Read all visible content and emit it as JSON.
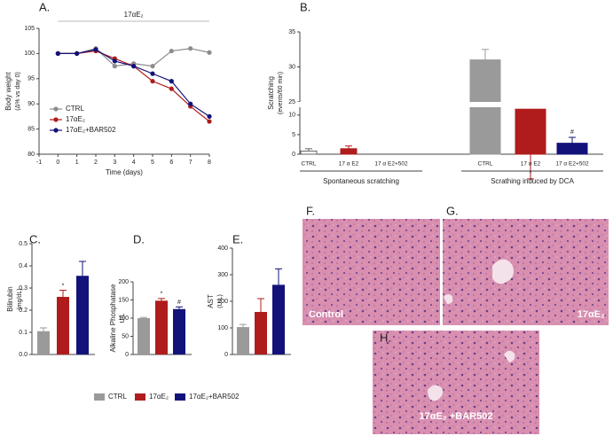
{
  "chart_data": [
    {
      "type": "line",
      "label": "A.",
      "annotation": "17αE₂",
      "ylabel": "Body weight",
      "ylabel_unit": "(Δ% vs day 0)",
      "xlabel": "Time (days)",
      "x": [
        0,
        1,
        2,
        3,
        4,
        5,
        6,
        7,
        8
      ],
      "xlim": [
        -1,
        8
      ],
      "xticks": [
        -1,
        0,
        1,
        2,
        3,
        4,
        5,
        6,
        7,
        8
      ],
      "ylim": [
        80,
        105
      ],
      "yticks": [
        80,
        85,
        90,
        95,
        100,
        105
      ],
      "legend": "left",
      "series": [
        {
          "name": "CTRL",
          "color": "#8c8c8c",
          "values": [
            100,
            100,
            101,
            97.5,
            98,
            97.5,
            100.5,
            101,
            100.2
          ]
        },
        {
          "name": "17αE₂",
          "color": "#b01c1c",
          "values": [
            100,
            100,
            100.5,
            99,
            97.5,
            94.5,
            93,
            89.5,
            86.5
          ]
        },
        {
          "name": "17αE₂+BAR502",
          "color": "#12127a",
          "values": [
            100,
            100,
            100.8,
            98.5,
            97.5,
            96,
            94.5,
            90,
            87.5
          ]
        }
      ]
    },
    {
      "type": "grouped-bar",
      "label": "B.",
      "ylabel": "Scratching",
      "ylabel_unit": "(events/60 min)",
      "ylim": [
        0,
        35
      ],
      "ybreak": [
        12,
        25
      ],
      "yticks": [
        0,
        5,
        10,
        25,
        30,
        35
      ],
      "groups": [
        {
          "name": "Spontaneous scratching",
          "categories": [
            "CTRL",
            "17 α E2",
            "17 α E2+502"
          ],
          "values": [
            0.8,
            1.4,
            0
          ],
          "errors": [
            0.6,
            0.7,
            0
          ],
          "colors": [
            "#ffffff",
            "#b01c1c",
            "#12127a"
          ],
          "annotations": [
            null,
            null,
            null
          ]
        },
        {
          "name": "Scrathing induced by DCA",
          "categories": [
            "CTRL",
            "17 α E2",
            "17 α E2+502"
          ],
          "values": [
            31,
            11.5,
            2.8
          ],
          "errors": [
            1.5,
            2.5,
            1.5
          ],
          "colors": [
            "#9a9a9a",
            "#b01c1c",
            "#12127a"
          ],
          "annotations": [
            null,
            "*",
            "#"
          ]
        }
      ]
    },
    {
      "type": "bar",
      "label": "C.",
      "ylabel": "Bilirubin",
      "ylabel_unit": "(mg/dL)",
      "ylim": [
        0,
        0.5
      ],
      "yticks": [
        {
          "value": 0,
          "label": "0.0"
        },
        0.1,
        0.2,
        0.3,
        0.4,
        0.5
      ],
      "values": [
        0.105,
        0.26,
        0.355
      ],
      "errors": [
        0.015,
        0.03,
        0.065
      ],
      "colors": [
        "#9a9a9a",
        "#b01c1c",
        "#12127a"
      ],
      "annotations": [
        null,
        "*",
        null
      ]
    },
    {
      "type": "bar",
      "label": "D.",
      "ylabel": "Alkaline Phosphatase",
      "ylabel_unit": "U/L",
      "ylim": [
        0,
        200
      ],
      "yticks": [
        0,
        50,
        100,
        150,
        200
      ],
      "values": [
        100,
        148,
        125
      ],
      "errors": [
        2,
        6,
        6
      ],
      "colors": [
        "#9a9a9a",
        "#b01c1c",
        "#12127a"
      ],
      "annotations": [
        null,
        "*",
        "#"
      ]
    },
    {
      "type": "bar",
      "label": "E.",
      "ylabel": "AST",
      "ylabel_unit": "(U/L)",
      "ylim": [
        0,
        400
      ],
      "yticks": [
        0,
        100,
        200,
        300,
        400
      ],
      "values": [
        103,
        160,
        262
      ],
      "errors": [
        10,
        50,
        60
      ],
      "colors": [
        "#9a9a9a",
        "#b01c1c",
        "#12127a"
      ],
      "annotations": [
        null,
        null,
        null
      ]
    }
  ],
  "legend": {
    "labels": [
      "CTRL",
      "17αE₂",
      "17αE₂+BAR502"
    ],
    "colors": [
      "#9a9a9a",
      "#b01c1c",
      "#12127a"
    ]
  },
  "images": [
    {
      "label": "F.",
      "caption": "Control"
    },
    {
      "label": "G.",
      "caption": "17αE₂"
    },
    {
      "label": "H.",
      "caption": "17αE₂ +BAR502"
    }
  ]
}
